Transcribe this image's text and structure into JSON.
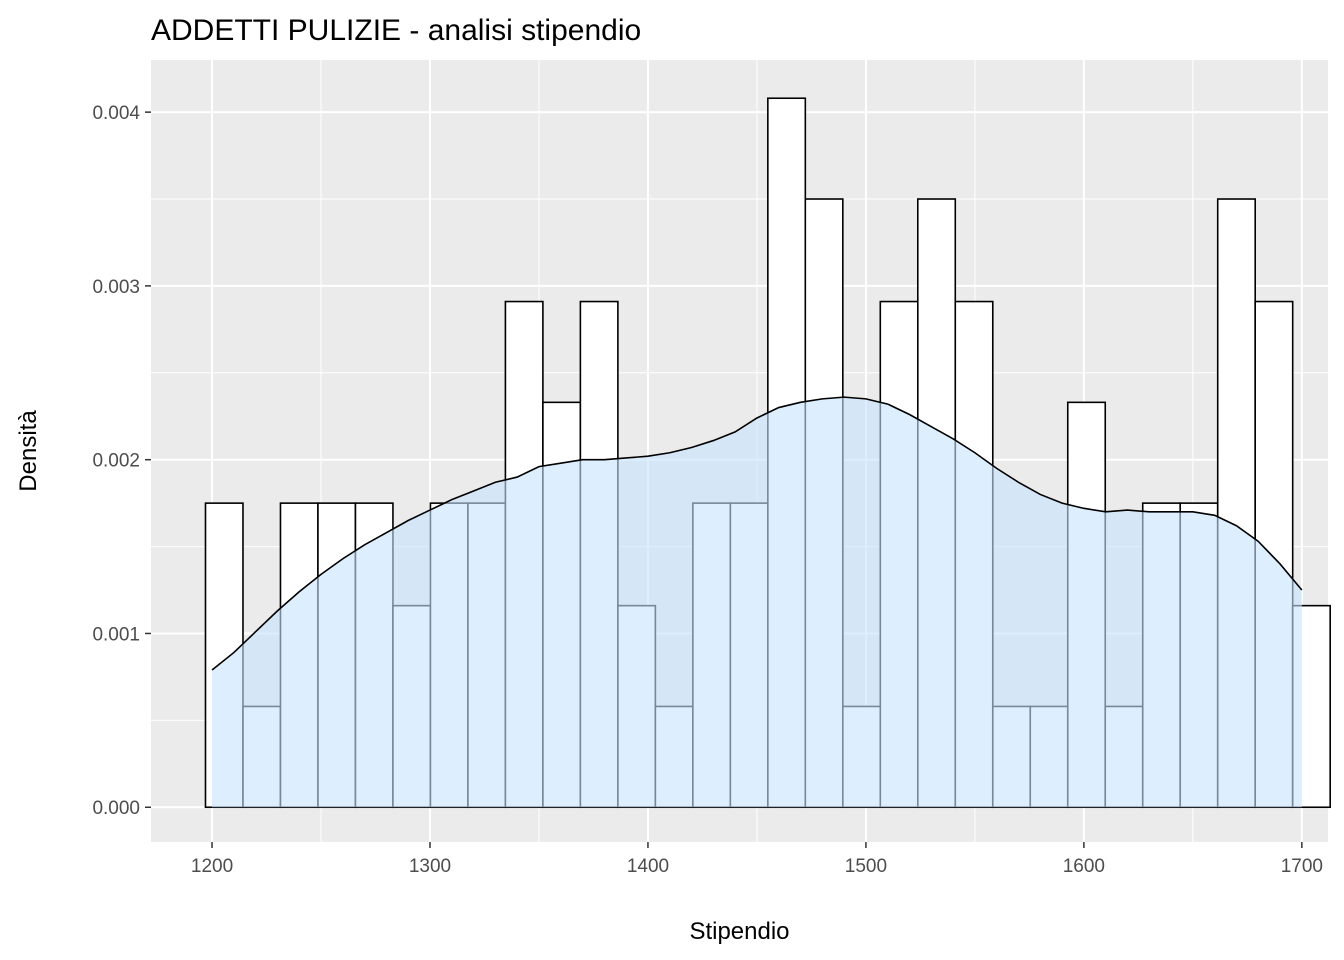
{
  "chart_data": {
    "type": "histogram",
    "title": "ADDETTI PULIZIE - analisi stipendio",
    "xlabel": "Stipendio",
    "ylabel": "Densità",
    "xlim": [
      1172,
      1712
    ],
    "ylim": [
      -0.0002,
      0.0043
    ],
    "x_ticks": [
      1200,
      1300,
      1400,
      1500,
      1600,
      1700
    ],
    "x_tick_labels": [
      "1200",
      "1300",
      "1400",
      "1500",
      "1600",
      "1700"
    ],
    "y_ticks": [
      0,
      0.001,
      0.002,
      0.003,
      0.004
    ],
    "y_tick_labels": [
      "0.000",
      "0.001",
      "0.002",
      "0.003",
      "0.004"
    ],
    "grid": true,
    "histogram": {
      "bin_width": 17.2,
      "bin_starts": [
        1197,
        1214.2,
        1231.4,
        1248.6,
        1265.8,
        1283,
        1300.2,
        1317.4,
        1334.6,
        1351.8,
        1369,
        1386.2,
        1403.4,
        1420.6,
        1437.8,
        1455,
        1472.2,
        1489.4,
        1506.6,
        1523.8,
        1541,
        1558.2,
        1575.4,
        1592.6,
        1609.8,
        1627,
        1644.2,
        1661.4,
        1678.6,
        1695.8
      ],
      "densities": [
        0.00175,
        0.00058,
        0.00175,
        0.00175,
        0.00175,
        0.00116,
        0.00175,
        0.00175,
        0.00291,
        0.00233,
        0.00291,
        0.00116,
        0.00058,
        0.00175,
        0.00175,
        0.00408,
        0.0035,
        0.00058,
        0.00291,
        0.0035,
        0.00291,
        0.00058,
        0.00058,
        0.00233,
        0.00058,
        0.00175,
        0.00175,
        0.0035,
        0.00291,
        0.00116
      ],
      "fill": "#ffffff",
      "stroke": "#000000"
    },
    "density": {
      "x": [
        1200,
        1210,
        1220,
        1230,
        1240,
        1250,
        1260,
        1270,
        1280,
        1290,
        1300,
        1310,
        1320,
        1330,
        1340,
        1350,
        1360,
        1370,
        1380,
        1390,
        1400,
        1410,
        1420,
        1430,
        1440,
        1450,
        1460,
        1470,
        1480,
        1490,
        1500,
        1510,
        1520,
        1530,
        1540,
        1550,
        1560,
        1570,
        1580,
        1590,
        1600,
        1610,
        1620,
        1630,
        1640,
        1650,
        1660,
        1670,
        1680,
        1690,
        1700
      ],
      "y": [
        0.00079,
        0.00089,
        0.00101,
        0.00113,
        0.00124,
        0.00134,
        0.00143,
        0.00151,
        0.00158,
        0.00165,
        0.00171,
        0.00177,
        0.00182,
        0.00187,
        0.0019,
        0.00196,
        0.00198,
        0.002,
        0.002,
        0.00201,
        0.00202,
        0.00204,
        0.00207,
        0.00211,
        0.00216,
        0.00224,
        0.0023,
        0.00233,
        0.00235,
        0.00236,
        0.00235,
        0.00232,
        0.00226,
        0.00219,
        0.00212,
        0.00204,
        0.00195,
        0.00187,
        0.0018,
        0.00175,
        0.00172,
        0.0017,
        0.00171,
        0.0017,
        0.0017,
        0.0017,
        0.00168,
        0.00162,
        0.00153,
        0.0014,
        0.00125
      ],
      "fill": "#c6e2ff",
      "fill_opacity": 0.6,
      "stroke": "#000000"
    },
    "colors": {
      "panel_background": "#ebebeb",
      "grid_major": "#ffffff",
      "tick_label": "#4d4d4d"
    }
  }
}
